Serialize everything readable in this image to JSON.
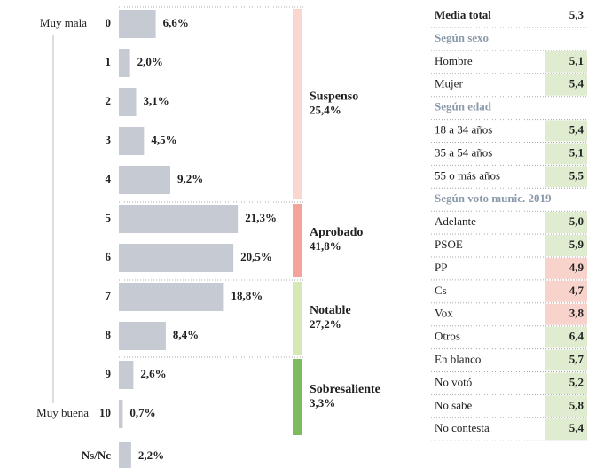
{
  "chart_data": {
    "type": "bar",
    "orientation": "horizontal",
    "categories": [
      "0",
      "1",
      "2",
      "3",
      "4",
      "5",
      "6",
      "7",
      "8",
      "9",
      "10",
      "Ns/Nc"
    ],
    "values": [
      6.6,
      2.0,
      3.1,
      4.5,
      9.2,
      21.3,
      20.5,
      18.8,
      8.4,
      2.6,
      0.7,
      2.2
    ],
    "value_labels": [
      "6,6%",
      "2,0%",
      "3,1%",
      "4,5%",
      "9,2%",
      "21,3%",
      "20,5%",
      "18,8%",
      "8,4%",
      "2,6%",
      "0,7%",
      "2,2%"
    ],
    "color": "#c5cad3",
    "scale_start": "Muy mala",
    "scale_end": "Muy buena",
    "groups": [
      {
        "name": "Suspenso",
        "value": 25.4,
        "value_label": "25,4%",
        "color": "#fbd5cf"
      },
      {
        "name": "Aprobado",
        "value": 41.8,
        "value_label": "41,8%",
        "color": "#f4a49a"
      },
      {
        "name": "Notable",
        "value": 27.2,
        "value_label": "27,2%",
        "color": "#d6e8b5"
      },
      {
        "name": "Sobresaliente",
        "value": 3.3,
        "value_label": "3,3%",
        "color": "#7dbb5e"
      }
    ]
  },
  "table": {
    "rows": [
      {
        "label": "Media total",
        "value": "5,3",
        "kind": "total"
      },
      {
        "label": "Según sexo",
        "kind": "section"
      },
      {
        "label": "Hombre",
        "value": "5,1",
        "color": "#dfeccf"
      },
      {
        "label": "Mujer",
        "value": "5,4",
        "color": "#dfeccf"
      },
      {
        "label": "Según edad",
        "kind": "section"
      },
      {
        "label": "18 a 34 años",
        "value": "5,4",
        "color": "#dfeccf"
      },
      {
        "label": "35 a 54 años",
        "value": "5,1",
        "color": "#dfeccf"
      },
      {
        "label": "55 o más años",
        "value": "5,5",
        "color": "#dfeccf"
      },
      {
        "label": "Según voto munic. 2019",
        "kind": "section"
      },
      {
        "label": "Adelante",
        "value": "5,0",
        "color": "#dfeccf"
      },
      {
        "label": "PSOE",
        "value": "5,9",
        "color": "#dfeccf"
      },
      {
        "label": "PP",
        "value": "4,9",
        "color": "#f8d3cb"
      },
      {
        "label": "Cs",
        "value": "4,7",
        "color": "#f8d3cb"
      },
      {
        "label": "Vox",
        "value": "3,8",
        "color": "#f8d3cb"
      },
      {
        "label": "Otros",
        "value": "6,4",
        "color": "#dfeccf"
      },
      {
        "label": "En blanco",
        "value": "5,7",
        "color": "#dfeccf"
      },
      {
        "label": "No votó",
        "value": "5,2",
        "color": "#dfeccf"
      },
      {
        "label": "No sabe",
        "value": "5,8",
        "color": "#dfeccf"
      },
      {
        "label": "No contesta",
        "value": "5,4",
        "color": "#dfeccf"
      }
    ]
  }
}
